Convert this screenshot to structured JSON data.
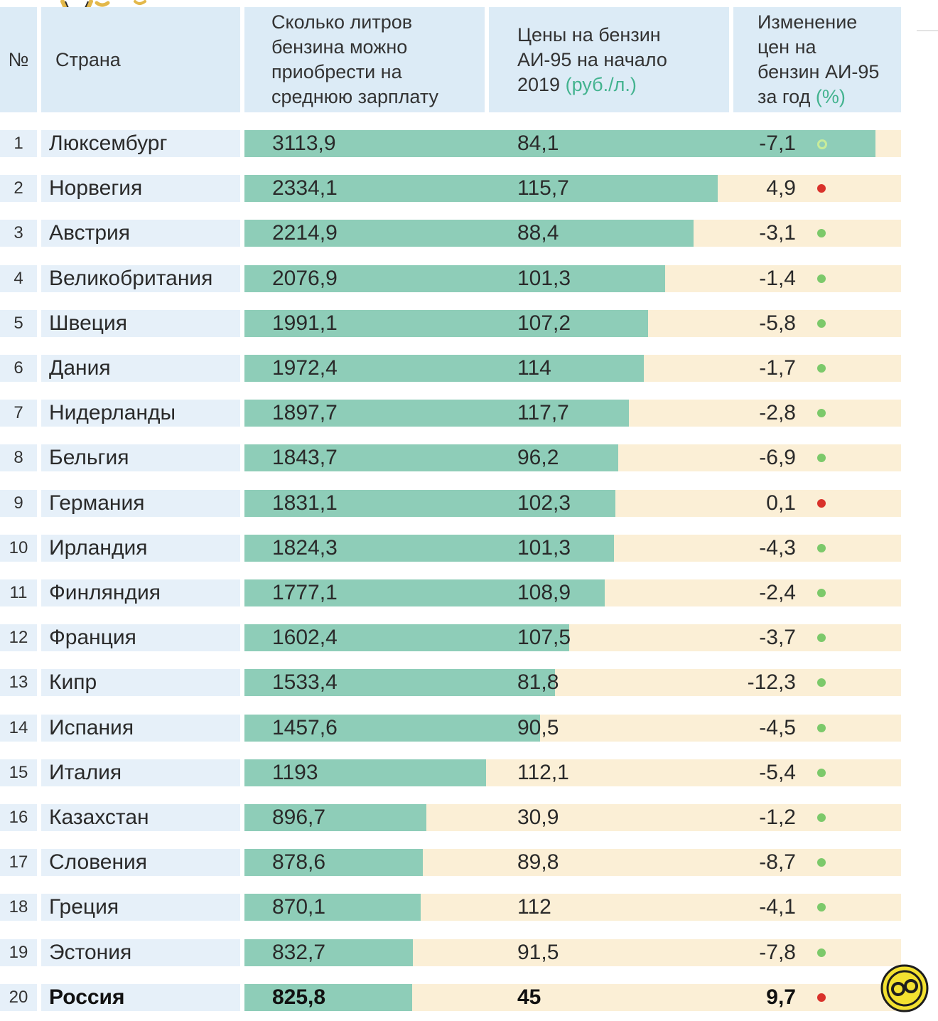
{
  "header": {
    "num": "№",
    "country": "Страна",
    "liters_lines": [
      "Сколько литров",
      "бензина можно",
      "приобрести на",
      "среднюю зарплату"
    ],
    "price_lines": [
      "Цены на бензин",
      "АИ-95 на начало",
      "2019"
    ],
    "price_unit": "(руб./л.)",
    "change_lines": [
      "Изменение",
      "цен на",
      "бензин АИ-95",
      "за год"
    ],
    "change_unit": "(%)"
  },
  "colors": {
    "bar": "#8ecdb8",
    "track": "#fbefd6",
    "header": "#dcebf6",
    "dot_decrease": "#7cc96a",
    "dot_increase": "#d9322b",
    "accent_text": "#43b38f"
  },
  "chart_data": {
    "type": "table",
    "title": "",
    "columns": [
      "№",
      "Страна",
      "Сколько литров бензина можно приобрести на среднюю зарплату",
      "Цены на бензин АИ-95 на начало 2019 (руб./л.)",
      "Изменение цен на бензин АИ-95 за год (%)"
    ],
    "bar_max": 3240,
    "rows": [
      {
        "num": "1",
        "country": "Люксембург",
        "liters": 3113.9,
        "liters_label": "3113,9",
        "price": 84.1,
        "price_label": "84,1",
        "change": -7.1,
        "change_label": "-7,1",
        "trend": "down"
      },
      {
        "num": "2",
        "country": "Норвегия",
        "liters": 2334.1,
        "liters_label": "2334,1",
        "price": 115.7,
        "price_label": "115,7",
        "change": 4.9,
        "change_label": "4,9",
        "trend": "up"
      },
      {
        "num": "3",
        "country": "Австрия",
        "liters": 2214.9,
        "liters_label": "2214,9",
        "price": 88.4,
        "price_label": "88,4",
        "change": -3.1,
        "change_label": "-3,1",
        "trend": "down"
      },
      {
        "num": "4",
        "country": "Великобритания",
        "liters": 2076.9,
        "liters_label": "2076,9",
        "price": 101.3,
        "price_label": "101,3",
        "change": -1.4,
        "change_label": "-1,4",
        "trend": "down"
      },
      {
        "num": "5",
        "country": "Швеция",
        "liters": 1991.1,
        "liters_label": "1991,1",
        "price": 107.2,
        "price_label": "107,2",
        "change": -5.8,
        "change_label": "-5,8",
        "trend": "down"
      },
      {
        "num": "6",
        "country": "Дания",
        "liters": 1972.4,
        "liters_label": "1972,4",
        "price": 114,
        "price_label": "114",
        "change": -1.7,
        "change_label": "-1,7",
        "trend": "down"
      },
      {
        "num": "7",
        "country": "Нидерланды",
        "liters": 1897.7,
        "liters_label": "1897,7",
        "price": 117.7,
        "price_label": "117,7",
        "change": -2.8,
        "change_label": "-2,8",
        "trend": "down"
      },
      {
        "num": "8",
        "country": "Бельгия",
        "liters": 1843.7,
        "liters_label": "1843,7",
        "price": 96.2,
        "price_label": "96,2",
        "change": -6.9,
        "change_label": "-6,9",
        "trend": "down"
      },
      {
        "num": "9",
        "country": "Германия",
        "liters": 1831.1,
        "liters_label": "1831,1",
        "price": 102.3,
        "price_label": "102,3",
        "change": 0.1,
        "change_label": "0,1",
        "trend": "up"
      },
      {
        "num": "10",
        "country": "Ирландия",
        "liters": 1824.3,
        "liters_label": "1824,3",
        "price": 101.3,
        "price_label": "101,3",
        "change": -4.3,
        "change_label": "-4,3",
        "trend": "down"
      },
      {
        "num": "11",
        "country": "Финляндия",
        "liters": 1777.1,
        "liters_label": "1777,1",
        "price": 108.9,
        "price_label": "108,9",
        "change": -2.4,
        "change_label": "-2,4",
        "trend": "down"
      },
      {
        "num": "12",
        "country": "Франция",
        "liters": 1602.4,
        "liters_label": "1602,4",
        "price": 107.5,
        "price_label": "107,5",
        "change": -3.7,
        "change_label": "-3,7",
        "trend": "down"
      },
      {
        "num": "13",
        "country": "Кипр",
        "liters": 1533.4,
        "liters_label": "1533,4",
        "price": 81.8,
        "price_label": "81,8",
        "change": -12.3,
        "change_label": "-12,3",
        "trend": "down"
      },
      {
        "num": "14",
        "country": "Испания",
        "liters": 1457.6,
        "liters_label": "1457,6",
        "price": 90.5,
        "price_label": "90,5",
        "change": -4.5,
        "change_label": "-4,5",
        "trend": "down"
      },
      {
        "num": "15",
        "country": "Италия",
        "liters": 1193,
        "liters_label": "1193",
        "price": 112.1,
        "price_label": "112,1",
        "change": -5.4,
        "change_label": "-5,4",
        "trend": "down"
      },
      {
        "num": "16",
        "country": "Казахстан",
        "liters": 896.7,
        "liters_label": "896,7",
        "price": 30.9,
        "price_label": "30,9",
        "change": -1.2,
        "change_label": "-1,2",
        "trend": "down"
      },
      {
        "num": "17",
        "country": "Словения",
        "liters": 878.6,
        "liters_label": "878,6",
        "price": 89.8,
        "price_label": "89,8",
        "change": -8.7,
        "change_label": "-8,7",
        "trend": "down"
      },
      {
        "num": "18",
        "country": "Греция",
        "liters": 870.1,
        "liters_label": "870,1",
        "price": 112,
        "price_label": "112",
        "change": -4.1,
        "change_label": "-4,1",
        "trend": "down"
      },
      {
        "num": "19",
        "country": "Эстония",
        "liters": 832.7,
        "liters_label": "832,7",
        "price": 91.5,
        "price_label": "91,5",
        "change": -7.8,
        "change_label": "-7,8",
        "trend": "down"
      },
      {
        "num": "20",
        "country": "Россия",
        "liters": 825.8,
        "liters_label": "825,8",
        "price": 45,
        "price_label": "45",
        "change": 9.7,
        "change_label": "9,7",
        "trend": "up",
        "highlight": true
      }
    ]
  }
}
